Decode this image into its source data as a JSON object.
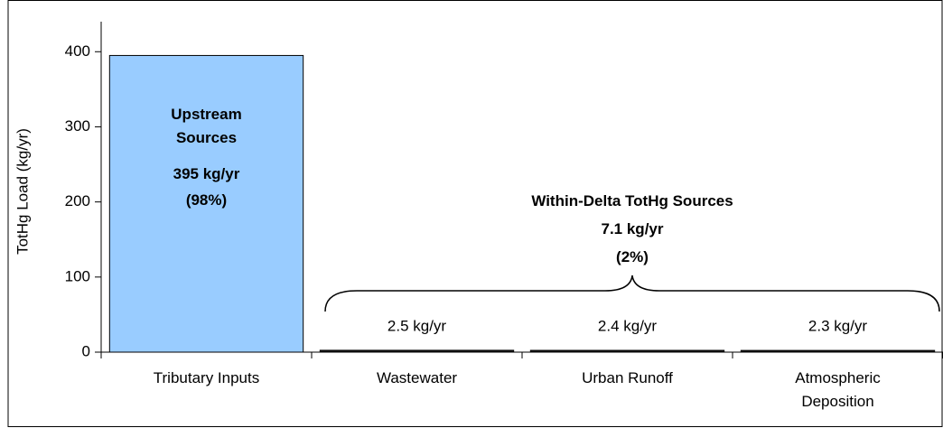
{
  "chart_data": {
    "type": "bar",
    "y_label": "TotHg Load (kg/yr)",
    "categories": [
      "Tributary Inputs",
      "Wastewater",
      "Urban Runoff",
      "Atmospheric Deposition"
    ],
    "values": [
      395,
      2.5,
      2.4,
      2.3
    ],
    "value_labels": [
      "395 kg/yr",
      "2.5 kg/yr",
      "2.4 kg/yr",
      "2.3 kg/yr"
    ],
    "colors": [
      "#99ccff",
      "#1a1a1a",
      "#1a1a1a",
      "#1a1a1a"
    ],
    "ylim": [
      0,
      440
    ],
    "yticks": [
      0,
      100,
      200,
      300,
      400
    ],
    "annotations": {
      "upstream": [
        "Upstream Sources",
        "(98%)"
      ],
      "within_delta": [
        "Within-Delta TotHg Sources",
        "7.1 kg/yr",
        "(2%)"
      ]
    }
  }
}
